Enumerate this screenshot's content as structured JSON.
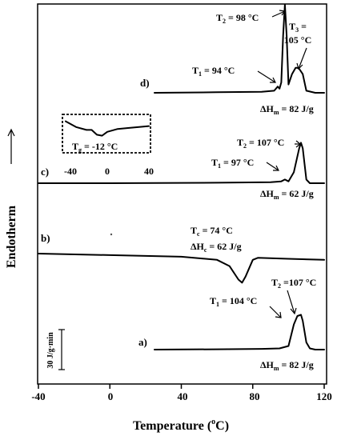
{
  "chart_data": {
    "type": "line",
    "xlabel": "Temperature (",
    "xlabel_sup": "o",
    "xlabel_end": "C)",
    "ylabel": "Endotherm",
    "xlim": [
      -40,
      120
    ],
    "xticks": [
      "-40",
      "0",
      "40",
      "80",
      "120"
    ],
    "grid": false,
    "scale_bar": "30 J/g·min",
    "inset": {
      "xlim": [
        -40,
        40
      ],
      "ticks": [
        "-40",
        "0",
        "40"
      ],
      "tg_label": "T",
      "tg_sub": "g",
      "tg_value": " = -12 °C",
      "curve": [
        [
          -40,
          0.85
        ],
        [
          -30,
          0.55
        ],
        [
          -20,
          0.4
        ],
        [
          -15,
          0.4
        ],
        [
          -10,
          0.15
        ],
        [
          -5,
          0.1
        ],
        [
          0,
          0.3
        ],
        [
          10,
          0.45
        ],
        [
          20,
          0.5
        ],
        [
          40,
          0.6
        ]
      ]
    },
    "series": [
      {
        "name": "a)",
        "points": [
          [
            25,
            0
          ],
          [
            60,
            0.3
          ],
          [
            85,
            0.6
          ],
          [
            95,
            1
          ],
          [
            100,
            3
          ],
          [
            103,
            21
          ],
          [
            105,
            28
          ],
          [
            107,
            29
          ],
          [
            108,
            24
          ],
          [
            110,
            6
          ],
          [
            112,
            1
          ],
          [
            115,
            0
          ],
          [
            120,
            0
          ]
        ],
        "annotations": {
          "T1": {
            "label": "T",
            "sub": "1",
            "value": " = 104 °C"
          },
          "T2": {
            "label": "T",
            "sub": "2",
            "value": " =107 °C"
          },
          "dH": {
            "label": "ΔH",
            "sub": "m",
            "value": " = 82 J/g"
          }
        }
      },
      {
        "name": "b)",
        "points": [
          [
            -40,
            0
          ],
          [
            0,
            -1.5
          ],
          [
            40,
            -3
          ],
          [
            60,
            -6
          ],
          [
            67,
            -12
          ],
          [
            72,
            -25
          ],
          [
            74,
            -28
          ],
          [
            76,
            -22
          ],
          [
            78,
            -14
          ],
          [
            80,
            -6
          ],
          [
            83,
            -4
          ],
          [
            100,
            -5
          ],
          [
            120,
            -6
          ]
        ],
        "annotations": {
          "Tc": {
            "label": "T",
            "sub": "c",
            "value": " = 74 °C"
          },
          "dH": {
            "label": "ΔH",
            "sub": "c",
            "value": " = 62 J/g"
          }
        }
      },
      {
        "name": "c)",
        "points": [
          [
            -40,
            0
          ],
          [
            0,
            0
          ],
          [
            60,
            0.5
          ],
          [
            90,
            1
          ],
          [
            96,
            2
          ],
          [
            98,
            4
          ],
          [
            100,
            2
          ],
          [
            103,
            12
          ],
          [
            106,
            38
          ],
          [
            107,
            44
          ],
          [
            108,
            38
          ],
          [
            110,
            4
          ],
          [
            112,
            0
          ],
          [
            120,
            0
          ]
        ],
        "annotations": {
          "T1": {
            "label": "T",
            "sub": "1",
            "value": " = 97 °C"
          },
          "T2": {
            "label": "T",
            "sub": "2",
            "value": " = 107 °C"
          },
          "dH": {
            "label": "ΔH",
            "sub": "m",
            "value": " = 62 J/g"
          }
        }
      },
      {
        "name": "d)",
        "points": [
          [
            25,
            0
          ],
          [
            60,
            0.5
          ],
          [
            85,
            1
          ],
          [
            92,
            2
          ],
          [
            94,
            6
          ],
          [
            95,
            4
          ],
          [
            96,
            10
          ],
          [
            97,
            55
          ],
          [
            98,
            85
          ],
          [
            99,
            55
          ],
          [
            100,
            8
          ],
          [
            102,
            18
          ],
          [
            104,
            24
          ],
          [
            105,
            24
          ],
          [
            106,
            23
          ],
          [
            108,
            18
          ],
          [
            110,
            2
          ],
          [
            115,
            0
          ],
          [
            120,
            0
          ]
        ],
        "annotations": {
          "T1": {
            "label": "T",
            "sub": "1",
            "value": " = 94 °C"
          },
          "T2": {
            "label": "T",
            "sub": "2",
            "value": " = 98 °C"
          },
          "T3": {
            "label": "T",
            "sub": "3",
            "value": " ="
          },
          "T3b": "105 °C",
          "dH": {
            "label": "ΔH",
            "sub": "m",
            "value": " = 82 J/g"
          }
        }
      }
    ]
  }
}
